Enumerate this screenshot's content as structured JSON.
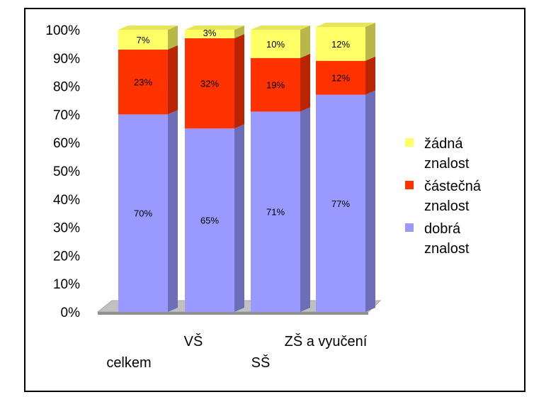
{
  "chart_data": {
    "type": "bar",
    "stacked": true,
    "percent_scale": true,
    "categories": [
      "celkem",
      "VŠ",
      "SŠ",
      "ZŠ a vyučení"
    ],
    "series": [
      {
        "name": "dobrá znalost",
        "legend_lines": [
          "dobrá",
          "znalost"
        ],
        "color": "#9999ff",
        "values": [
          70,
          65,
          71,
          77
        ],
        "labels": [
          "70%",
          "65%",
          "71%",
          "77%"
        ]
      },
      {
        "name": "částečná znalost",
        "legend_lines": [
          "částečná",
          "znalost"
        ],
        "color": "#ff3300",
        "values": [
          23,
          32,
          19,
          12
        ],
        "labels": [
          "23%",
          "32%",
          "19%",
          "12%"
        ]
      },
      {
        "name": "žádná znalost",
        "legend_lines": [
          "žádná",
          "znalost"
        ],
        "color": "#ffff66",
        "values": [
          7,
          3,
          10,
          12
        ],
        "labels": [
          "7%",
          "3%",
          "10%",
          "12%"
        ]
      }
    ],
    "ylim": [
      0,
      100
    ],
    "yticks": [
      "0%",
      "10%",
      "20%",
      "30%",
      "40%",
      "50%",
      "60%",
      "70%",
      "80%",
      "90%",
      "100%"
    ],
    "grid": false,
    "legend_position": "right",
    "three_d": true,
    "xlabel": "",
    "ylabel": "",
    "title": ""
  }
}
